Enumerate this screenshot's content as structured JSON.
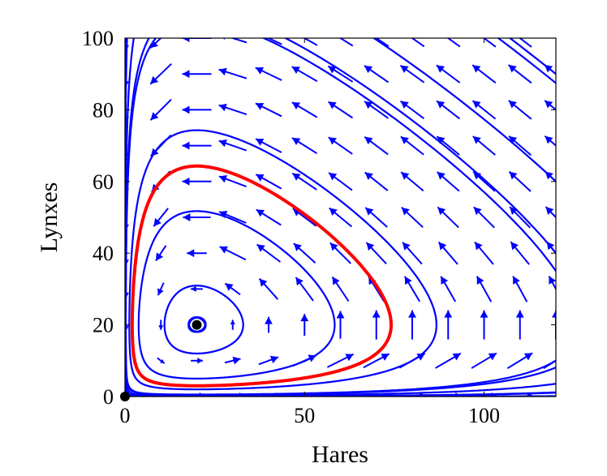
{
  "chart_data": {
    "type": "phase-portrait",
    "xlabel": "Hares",
    "ylabel": "Lynxes",
    "xlim": [
      0,
      120
    ],
    "ylim": [
      0,
      100
    ],
    "xticks": [
      0,
      50,
      100
    ],
    "yticks": [
      0,
      20,
      40,
      60,
      80,
      100
    ],
    "grid": false,
    "legend": "none",
    "model": {
      "a": 0.4,
      "b": 0.02,
      "c": 0.3,
      "d": 0.015
    },
    "equilibria": [
      {
        "x": 0,
        "y": 0
      },
      {
        "x": 20,
        "y": 20
      }
    ],
    "highlighted_orbit": {
      "x0": 20,
      "y0": 64.3,
      "color": "#ff0000"
    },
    "orbit_starts": [
      {
        "x": 20,
        "y": 22
      },
      {
        "x": 20,
        "y": 18
      },
      {
        "x": 20,
        "y": 12
      },
      {
        "x": 20,
        "y": 5
      },
      {
        "x": 20,
        "y": 2
      },
      {
        "x": 20,
        "y": 0.5
      },
      {
        "x": 20,
        "y": 0.1
      },
      {
        "x": 20,
        "y": 0.01
      },
      {
        "x": 20,
        "y": 0.003
      },
      {
        "x": 120,
        "y": 90
      },
      {
        "x": 120,
        "y": 60
      },
      {
        "x": 120,
        "y": 35
      }
    ],
    "flow_color": "#0000ff"
  }
}
